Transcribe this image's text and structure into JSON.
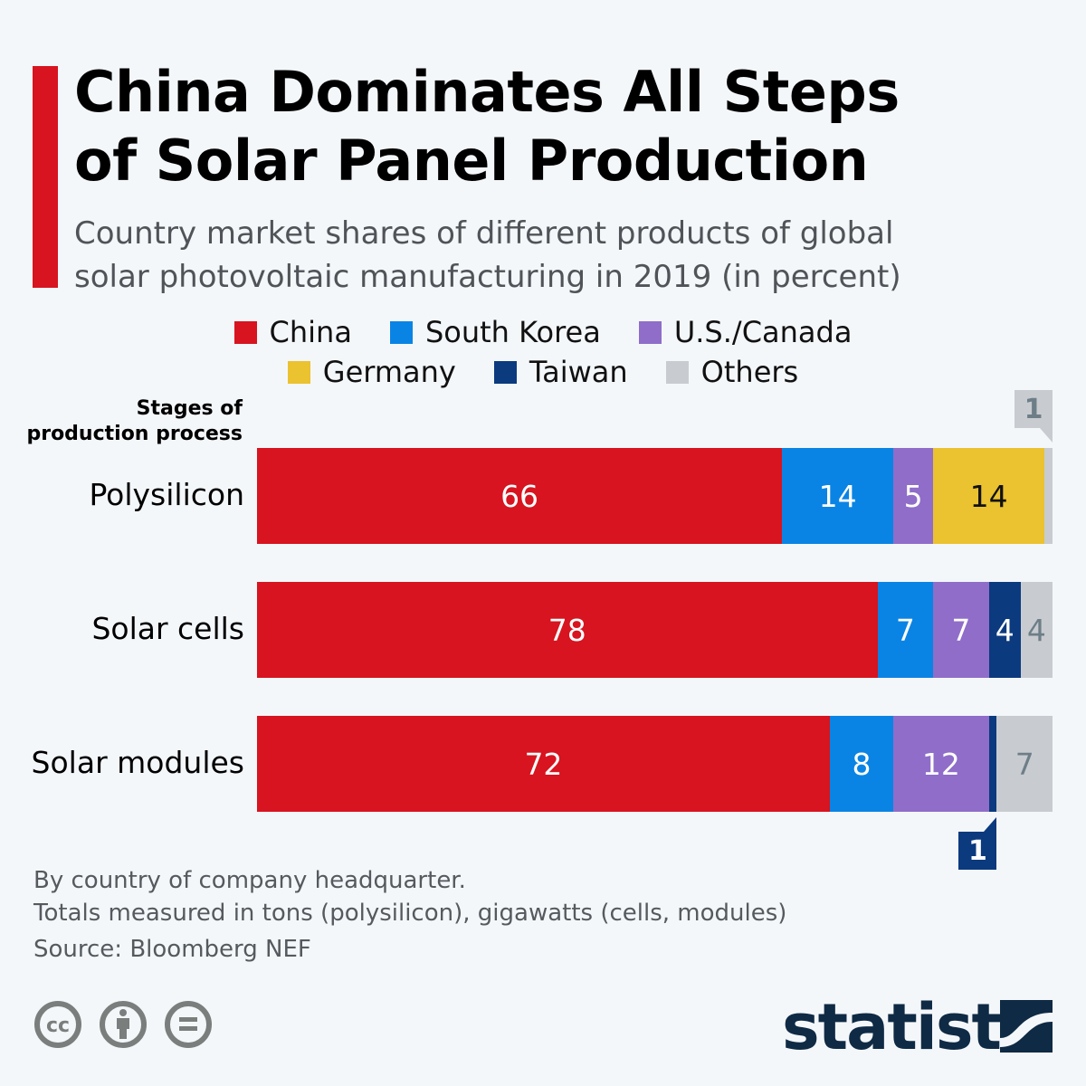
{
  "header": {
    "title_line1": "China Dominates All Steps",
    "title_line2": "of Solar Panel Production",
    "subtitle_line1": "Country market shares of different products of global",
    "subtitle_line2": "solar photovoltaic manufacturing in 2019 (in percent)"
  },
  "chart_data": {
    "type": "bar",
    "orientation": "horizontal",
    "stacked": true,
    "ylabel_line1": "Stages of",
    "ylabel_line2": "production process",
    "categories": [
      "Polysilicon",
      "Solar cells",
      "Solar modules"
    ],
    "xlim": [
      0,
      100
    ],
    "series": [
      {
        "name": "China",
        "color": "#d7141f",
        "values": [
          66,
          78,
          72
        ]
      },
      {
        "name": "South Korea",
        "color": "#0a84e4",
        "values": [
          14,
          7,
          8
        ]
      },
      {
        "name": "U.S./Canada",
        "color": "#8f6dc9",
        "values": [
          5,
          7,
          12
        ]
      },
      {
        "name": "Germany",
        "color": "#ebc22f",
        "values": [
          14,
          0,
          0
        ]
      },
      {
        "name": "Taiwan",
        "color": "#0b3a7e",
        "values": [
          0,
          4,
          1
        ]
      },
      {
        "name": "Others",
        "color": "#c8ccd0",
        "values": [
          1,
          4,
          7
        ]
      }
    ],
    "legend_placement": "top-center",
    "grid": false
  },
  "footer": {
    "note1": "By country of company headquarter.",
    "note2": "Totals measured in tons (polysilicon), gigawatts (cells, modules)",
    "source": "Source: Bloomberg NEF",
    "logo": "statista",
    "license_icons": [
      "cc-icon",
      "by-icon",
      "nd-icon"
    ]
  }
}
